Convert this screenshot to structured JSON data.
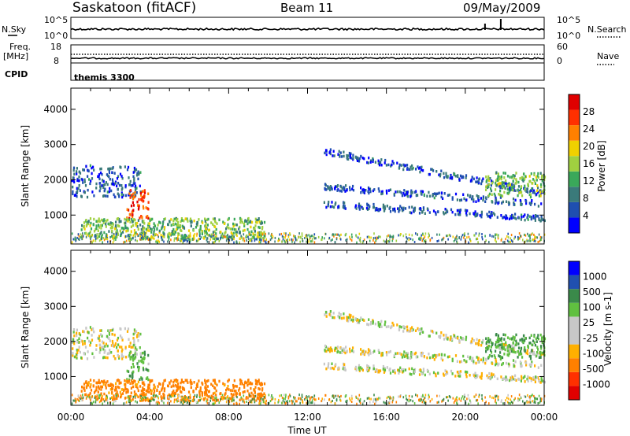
{
  "header": {
    "station": "Saskatoon (fitACF)",
    "beam": "Beam 11",
    "date": "09/May/2009"
  },
  "nsky_panel": {
    "left_label": "N.Sky",
    "left_tick_top": "10^5",
    "left_tick_bottom": "10^0",
    "right_label": "N.Search",
    "right_tick_top": "10^5",
    "right_tick_bottom": "10^0"
  },
  "freq_panel": {
    "left_label_1": "Freq.",
    "left_label_2": "[MHz]",
    "left_tick_top": "18",
    "left_tick_bottom": "8",
    "right_label": "Nave",
    "right_tick_top": "60",
    "right_tick_bottom": "0"
  },
  "cpid_panel": {
    "label": "CPID",
    "program": "themis 3300"
  },
  "colors": {
    "power": [
      "#0000ff",
      "#1f4fb0",
      "#3a7a7a",
      "#3aa85a",
      "#a0d040",
      "#f0d000",
      "#ff8000",
      "#ff3000",
      "#e00000"
    ],
    "velocity": [
      "#e00000",
      "#ff3000",
      "#ff8000",
      "#ffb000",
      "#c8c8c8",
      "#c8c8c8",
      "#60c040",
      "#3a8a4a",
      "#2050b0",
      "#0000ff"
    ]
  },
  "chart_data": [
    {
      "type": "heatmap",
      "name_panel": "power",
      "ylabel": "Slant Range [km]",
      "yticks": [
        "1000",
        "2000",
        "3000",
        "4000"
      ],
      "ylim": [
        180,
        4600
      ],
      "xlim_hours": [
        0,
        24
      ],
      "colorbar_label": "Power [dB]",
      "colorbar_ticks": [
        "4",
        "8",
        "12",
        "16",
        "20",
        "24",
        "28"
      ],
      "colorbar_range": [
        0,
        32
      ],
      "features": [
        {
          "from_h": 0.0,
          "to_h": 3.5,
          "range_km": [
            1500,
            2400
          ],
          "value": 6
        },
        {
          "from_h": 2.8,
          "to_h": 3.9,
          "range_km": [
            900,
            1700
          ],
          "value": 26
        },
        {
          "from_h": 0.5,
          "to_h": 9.8,
          "range_km": [
            300,
            900
          ],
          "value": 14
        },
        {
          "from_h": 12.8,
          "to_h": 24.0,
          "range_km": [
            800,
            3100
          ],
          "value": 6
        },
        {
          "from_h": 21.0,
          "to_h": 24.0,
          "range_km": [
            1500,
            2200
          ],
          "value": 14
        }
      ]
    },
    {
      "type": "heatmap",
      "name_panel": "velocity",
      "ylabel": "Slant Range [km]",
      "yticks": [
        "1000",
        "2000",
        "3000",
        "4000"
      ],
      "ylim": [
        180,
        4600
      ],
      "xlim_hours": [
        0,
        24
      ],
      "xticks": [
        "00:00",
        "04:00",
        "08:00",
        "12:00",
        "16:00",
        "20:00",
        "00:00"
      ],
      "xlabel": "Time UT",
      "colorbar_label": "Velocity [m s-1]",
      "colorbar_ticks": [
        "1000",
        "500",
        "100",
        "25",
        "-25",
        "-100",
        "-500",
        "-1000"
      ],
      "colorbar_range": [
        -1000,
        1000
      ],
      "features": [
        {
          "from_h": 0.0,
          "to_h": 3.5,
          "range_km": [
            1500,
            2400
          ],
          "value": 0
        },
        {
          "from_h": 2.8,
          "to_h": 3.9,
          "range_km": [
            900,
            1700
          ],
          "value": 80
        },
        {
          "from_h": 0.5,
          "to_h": 9.8,
          "range_km": [
            300,
            900
          ],
          "value": -150
        },
        {
          "from_h": 12.8,
          "to_h": 24.0,
          "range_km": [
            800,
            3100
          ],
          "value": 0
        },
        {
          "from_h": 21.0,
          "to_h": 24.0,
          "range_km": [
            1500,
            2200
          ],
          "value": 100
        }
      ]
    }
  ]
}
